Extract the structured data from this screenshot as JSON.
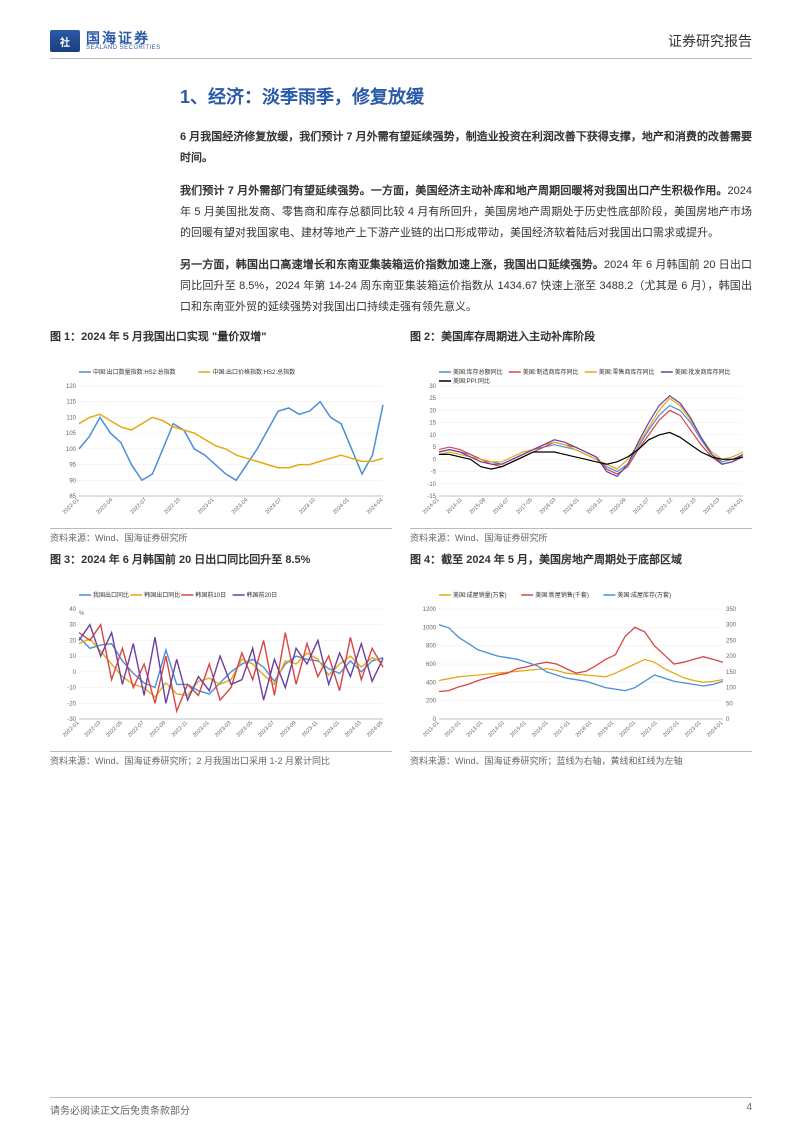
{
  "header": {
    "logo_cn": "国海证券",
    "logo_en": "SEALAND SECURITIES",
    "right": "证券研究报告"
  },
  "section_title": "1、经济：淡季雨季，修复放缓",
  "paragraphs": [
    "6 月我国经济修复放缓，我们预计 7 月外需有望延续强势，制造业投资在利润改善下获得支撑，地产和消费的改善需要时间。",
    "我们预计 7 月外需部门有望延续强势。一方面，美国经济主动补库和地产周期回暖将对我国出口产生积极作用。2024 年 5 月美国批发商、零售商和库存总额同比较 4 月有所回升，美国房地产周期处于历史性底部阶段，美国房地产市场的回暖有望对我国家电、建材等地产上下游产业链的出口形成带动，美国经济软着陆后对我国出口需求或提升。",
    "另一方面，韩国出口高速增长和东南亚集装箱运价指数加速上涨，我国出口延续强势。2024 年 6 月韩国前 20 日出口同比回升至 8.5%，2024 年第 14-24 周东南亚集装箱运价指数从 1434.67 快速上涨至 3488.2（尤其是 6 月），韩国出口和东南亚外贸的延续强势对我国出口持续走强有领先意义。"
  ],
  "chart1": {
    "title": "图 1：2024 年 5 月我国出口实现 \"量价双增\"",
    "type": "line",
    "legend": [
      "中国:出口数量指数:HS2:总指数",
      "中国:出口价格指数:HS2:总指数"
    ],
    "legend_colors": [
      "#4a8fd8",
      "#e6a817"
    ],
    "x_labels": [
      "2022-01",
      "2022-04",
      "2022-07",
      "2022-10",
      "2023-01",
      "2023-04",
      "2023-07",
      "2023-10",
      "2024-01",
      "2024-04"
    ],
    "ylim": [
      85,
      120
    ],
    "ytick_step": 5,
    "series": [
      {
        "color": "#4a8fd8",
        "width": 1.5,
        "data": [
          100,
          104,
          110,
          105,
          102,
          95,
          90,
          92,
          100,
          108,
          106,
          100,
          98,
          95,
          92,
          90,
          95,
          100,
          106,
          112,
          113,
          111,
          112,
          115,
          110,
          108,
          100,
          92,
          98,
          114
        ]
      },
      {
        "color": "#e6a817",
        "width": 1.5,
        "data": [
          108,
          110,
          111,
          109,
          107,
          106,
          108,
          110,
          109,
          107,
          106,
          105,
          103,
          101,
          100,
          98,
          97,
          96,
          95,
          94,
          94,
          95,
          95,
          96,
          97,
          98,
          97,
          96,
          96,
          97
        ]
      }
    ],
    "source": "资料来源：Wind、国海证券研究所"
  },
  "chart2": {
    "title": "图 2：美国库存周期进入主动补库阶段",
    "type": "line",
    "legend": [
      "美国:库存总额同比",
      "美国:制造商库存同比",
      "美国:零售商库存同比",
      "美国:批发商库存同比",
      "美国:PPI:同比"
    ],
    "legend_colors": [
      "#4a8fd8",
      "#d94545",
      "#e6a817",
      "#6b3fa0",
      "#000000"
    ],
    "x_labels": [
      "2014-01",
      "2014-11",
      "2015-09",
      "2016-07",
      "2017-05",
      "2018-03",
      "2019-01",
      "2019-11",
      "2020-09",
      "2021-07",
      "2021-12",
      "2022-10",
      "2023-03",
      "2024-01"
    ],
    "ylim": [
      -15,
      30
    ],
    "ytick_step": 5,
    "series": [
      {
        "color": "#4a8fd8",
        "width": 1.2,
        "data": [
          3,
          4,
          3,
          2,
          0,
          -1,
          -2,
          0,
          2,
          4,
          5,
          6,
          5,
          4,
          2,
          0,
          -3,
          -5,
          -2,
          5,
          12,
          18,
          22,
          20,
          15,
          8,
          2,
          -1,
          0,
          2
        ]
      },
      {
        "color": "#d94545",
        "width": 1.2,
        "data": [
          4,
          5,
          4,
          2,
          0,
          -2,
          -3,
          -1,
          1,
          3,
          5,
          7,
          6,
          5,
          3,
          1,
          -4,
          -6,
          -3,
          4,
          10,
          16,
          20,
          18,
          12,
          6,
          1,
          -2,
          -1,
          1
        ]
      },
      {
        "color": "#e6a817",
        "width": 1.2,
        "data": [
          2,
          3,
          2,
          1,
          0,
          -1,
          -1,
          1,
          3,
          4,
          6,
          7,
          6,
          4,
          2,
          0,
          -2,
          -4,
          0,
          6,
          13,
          20,
          25,
          22,
          16,
          9,
          3,
          0,
          1,
          3
        ]
      },
      {
        "color": "#6b3fa0",
        "width": 1.2,
        "data": [
          3,
          4,
          3,
          1,
          -1,
          -2,
          -2,
          0,
          2,
          4,
          6,
          8,
          7,
          5,
          3,
          1,
          -5,
          -7,
          -2,
          7,
          15,
          22,
          26,
          23,
          17,
          9,
          2,
          -2,
          -1,
          2
        ]
      },
      {
        "color": "#000000",
        "width": 1.2,
        "data": [
          2,
          2,
          1,
          0,
          -3,
          -4,
          -3,
          -1,
          1,
          3,
          3,
          3,
          2,
          1,
          0,
          -1,
          -2,
          -1,
          1,
          4,
          8,
          10,
          11,
          9,
          6,
          3,
          1,
          0,
          0,
          1
        ]
      }
    ],
    "source": "资料来源：Wind、国海证券研究所"
  },
  "chart3": {
    "title": "图 3：2024 年 6 月韩国前 20 日出口同比回升至 8.5%",
    "type": "line",
    "legend": [
      "我国出口同比",
      "韩国出口同比",
      "韩国前10日",
      "韩国前20日"
    ],
    "legend_colors": [
      "#4a8fd8",
      "#e6a817",
      "#d94545",
      "#6b3fa0"
    ],
    "unit": "%",
    "x_labels": [
      "2022-01",
      "2022-03",
      "2022-05",
      "2022-07",
      "2022-09",
      "2022-11",
      "2023-01",
      "2023-03",
      "2023-05",
      "2023-07",
      "2023-09",
      "2023-11",
      "2024-01",
      "2024-03",
      "2024-05"
    ],
    "ylim": [
      -30,
      40
    ],
    "ytick_step": 10,
    "series": [
      {
        "color": "#4a8fd8",
        "width": 1.4,
        "data": [
          22,
          15,
          17,
          18,
          7,
          -1,
          -7,
          -10,
          14,
          -8,
          -8,
          -12,
          -14,
          -7,
          0,
          5,
          8,
          3,
          -6,
          5,
          10,
          8,
          7,
          2,
          -1,
          7,
          0,
          7,
          9
        ]
      },
      {
        "color": "#e6a817",
        "width": 1.4,
        "data": [
          18,
          21,
          13,
          5,
          -3,
          -8,
          -10,
          -16,
          -7,
          -14,
          -15,
          -6,
          -4,
          -8,
          -5,
          8,
          5,
          -2,
          -8,
          7,
          5,
          12,
          8,
          -2,
          5,
          10,
          3,
          9,
          6
        ]
      },
      {
        "color": "#d94545",
        "width": 1.4,
        "data": [
          25,
          20,
          30,
          -5,
          15,
          -10,
          5,
          -20,
          10,
          -25,
          -8,
          -15,
          5,
          -18,
          -10,
          12,
          -5,
          20,
          -15,
          25,
          -8,
          18,
          -3,
          10,
          -12,
          22,
          -5,
          15,
          3
        ]
      },
      {
        "color": "#6b3fa0",
        "width": 1.4,
        "data": [
          20,
          30,
          10,
          25,
          -8,
          18,
          -15,
          22,
          -20,
          8,
          -18,
          -3,
          -12,
          10,
          -8,
          -5,
          15,
          -18,
          8,
          -10,
          15,
          5,
          20,
          -8,
          12,
          -3,
          18,
          -6,
          8.5
        ]
      }
    ],
    "source": "资料来源：Wind、国海证券研究所；2 月我国出口采用 1-2 月累计同比"
  },
  "chart4": {
    "title": "图 4：截至 2024 年 5 月，美国房地产周期处于底部区域",
    "type": "line-dual",
    "legend": [
      "美国:成屋销量(万套)",
      "美国:新屋销售(千套)",
      "美国:成屋库存(万套)"
    ],
    "legend_colors": [
      "#e6a817",
      "#d94545",
      "#4a8fd8"
    ],
    "x_labels": [
      "2011-01",
      "2012-01",
      "2013-01",
      "2014-01",
      "2015-01",
      "2016-01",
      "2017-01",
      "2018-01",
      "2019-01",
      "2020-01",
      "2021-01",
      "2022-01",
      "2023-01",
      "2024-01"
    ],
    "ylim_left": [
      0,
      1200
    ],
    "ytick_step_left": 200,
    "ylim_right": [
      0,
      350
    ],
    "ytick_step_right": 50,
    "series": [
      {
        "color": "#e6a817",
        "width": 1.3,
        "axis": "left",
        "data": [
          420,
          440,
          460,
          470,
          480,
          490,
          500,
          510,
          520,
          530,
          540,
          550,
          530,
          500,
          490,
          480,
          470,
          460,
          500,
          550,
          600,
          650,
          620,
          550,
          500,
          450,
          420,
          400,
          410,
          430
        ]
      },
      {
        "color": "#d94545",
        "width": 1.3,
        "axis": "left",
        "data": [
          300,
          310,
          350,
          380,
          420,
          450,
          480,
          500,
          550,
          570,
          600,
          620,
          600,
          550,
          500,
          520,
          580,
          650,
          700,
          900,
          1000,
          950,
          800,
          700,
          600,
          620,
          650,
          680,
          650,
          620
        ]
      },
      {
        "color": "#4a8fd8",
        "width": 1.3,
        "axis": "right",
        "data": [
          300,
          290,
          260,
          240,
          220,
          210,
          200,
          195,
          190,
          180,
          170,
          150,
          140,
          130,
          125,
          120,
          110,
          100,
          95,
          90,
          100,
          120,
          140,
          130,
          120,
          115,
          110,
          105,
          110,
          120
        ]
      }
    ],
    "source": "资料来源：Wind、国海证券研究所；蓝线为右轴，黄线和红线为左轴"
  },
  "footer": {
    "left": "请务必阅读正文后免责条款部分",
    "page": "4"
  },
  "colors": {
    "brand": "#2a5aa8",
    "grid": "#e0e0e0",
    "axis": "#888",
    "text": "#333"
  }
}
